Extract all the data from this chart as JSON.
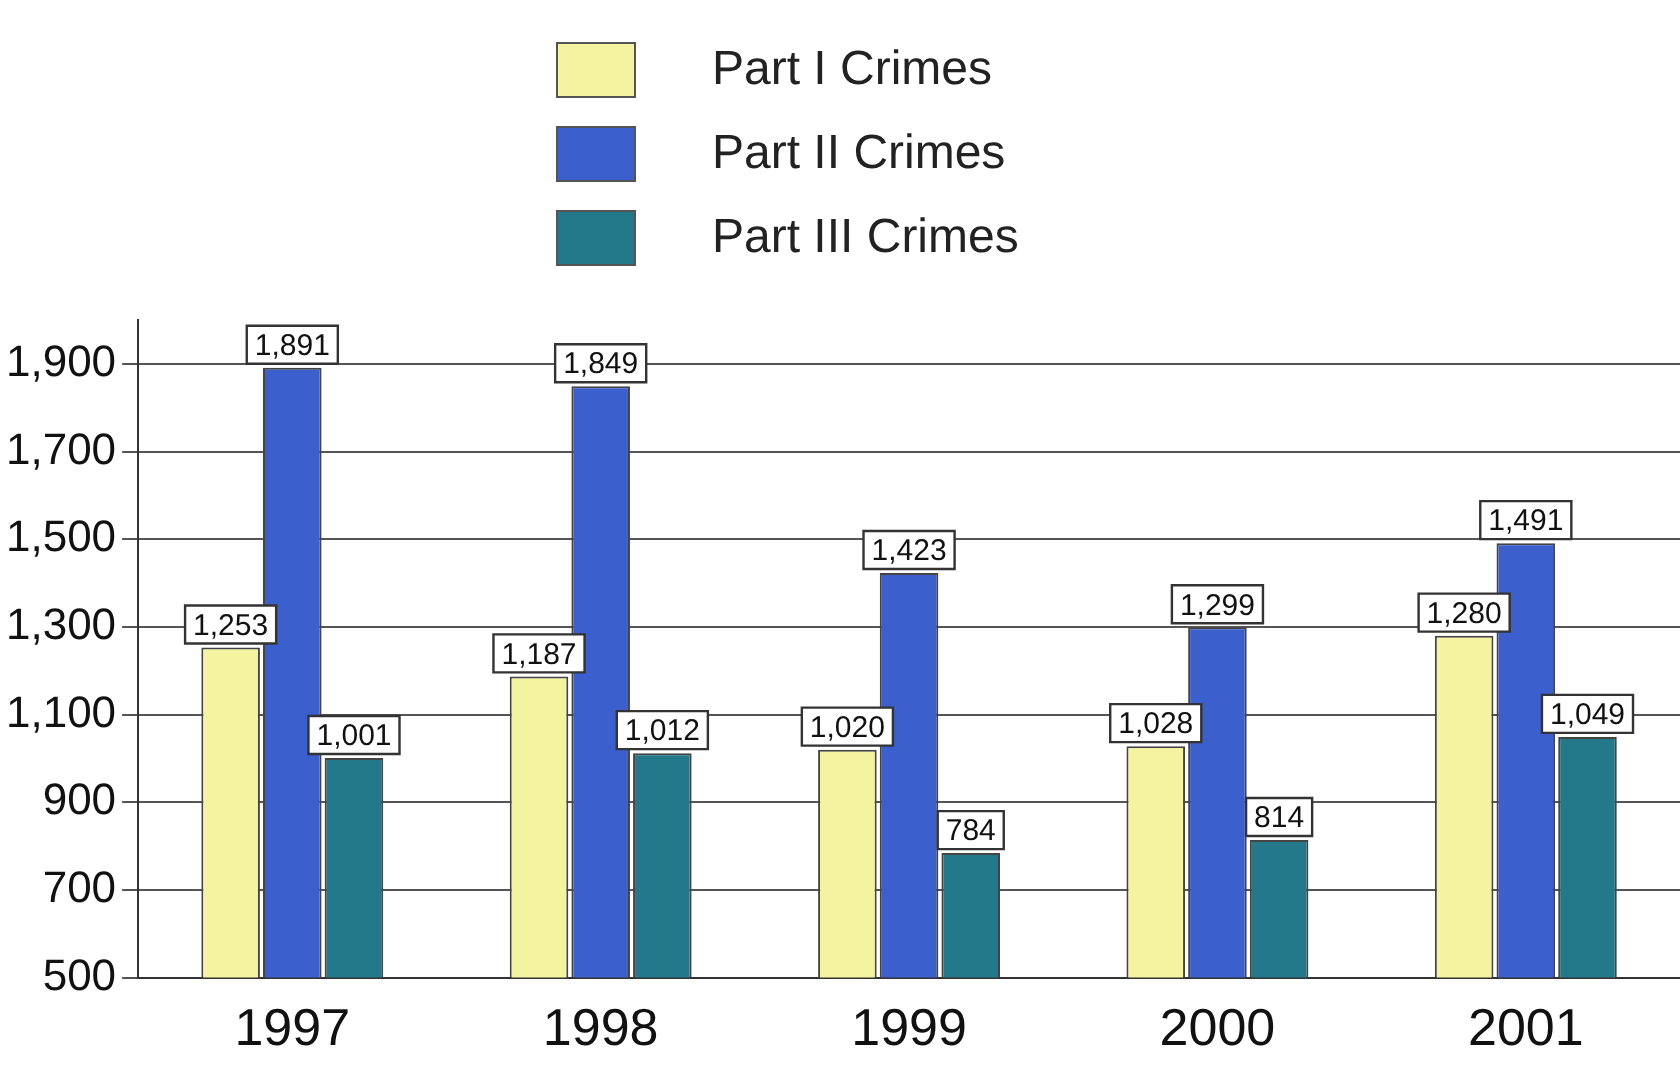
{
  "chart_data": {
    "type": "bar",
    "categories": [
      "1997",
      "1998",
      "1999",
      "2000",
      "2001"
    ],
    "series": [
      {
        "name": "Part I Crimes",
        "color": "#f4f4a0",
        "values": [
          1253,
          1187,
          1020,
          1028,
          1280
        ],
        "value_labels": [
          "1,253",
          "1,187",
          "1,020",
          "1,028",
          "1,280"
        ]
      },
      {
        "name": "Part II Crimes",
        "color": "#3b5fcc",
        "values": [
          1891,
          1849,
          1423,
          1299,
          1491
        ],
        "value_labels": [
          "1,891",
          "1,849",
          "1,423",
          "1,299",
          "1,491"
        ]
      },
      {
        "name": "Part III Crimes",
        "color": "#23788a",
        "values": [
          1001,
          1012,
          784,
          814,
          1049
        ],
        "value_labels": [
          "1,001",
          "1,012",
          "784",
          "814",
          "1,049"
        ]
      }
    ],
    "ylim": [
      500,
      2000
    ],
    "yticks": [
      {
        "value": 500,
        "label": "500"
      },
      {
        "value": 700,
        "label": "700"
      },
      {
        "value": 900,
        "label": "900"
      },
      {
        "value": 1100,
        "label": "1,100"
      },
      {
        "value": 1300,
        "label": "1,300"
      },
      {
        "value": 1500,
        "label": "1,500"
      },
      {
        "value": 1700,
        "label": "1,700"
      },
      {
        "value": 1900,
        "label": "1,900"
      }
    ],
    "grid": "y",
    "legend": "top"
  }
}
